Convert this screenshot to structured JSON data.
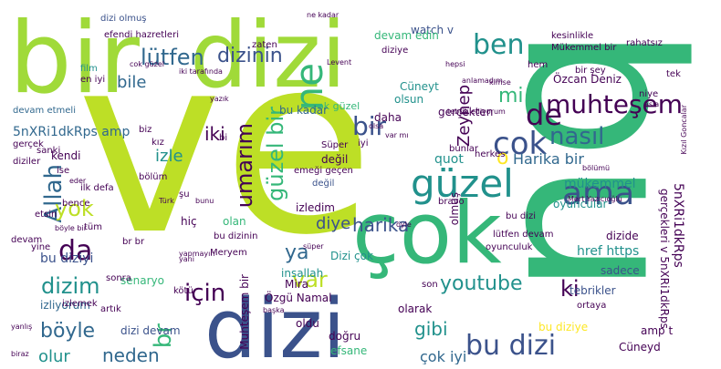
{
  "palette": {
    "darkPurple": "#440154",
    "indigo": "#3b528b",
    "blue": "#31688e",
    "teal": "#21918c",
    "green": "#35b779",
    "lime": "#a0da39",
    "yellowGreen": "#bddf26",
    "yellow": "#fde725"
  },
  "words": [
    "ve",
    "bu",
    "bir",
    "dizi",
    "çok",
    "dizi",
    "güzel",
    "ama",
    "muhteşem",
    "bir",
    "cok",
    "ne",
    "ben",
    "lütfen",
    "dizinin",
    "da",
    "de",
    "nasıl",
    "Allah",
    "umarım",
    "güzel bir",
    "harika",
    "Harika bir",
    "mi",
    "var",
    "ya",
    "için",
    "yok",
    "o",
    "dizim",
    "youtube",
    "gibi",
    "br",
    "ki",
    "böyle",
    "neden",
    "bu dizi",
    "çok iyi",
    "olur",
    "mükemmel",
    "iki",
    "izle",
    "bile",
    "Zeynep",
    "diye",
    "quot",
    "href https",
    "5nXRi1dkRps amp",
    "5nXRi1dkRps",
    "Cüneyt",
    "Özcan Deniz",
    "watch v",
    "devam edin",
    "olsun",
    "bu diziyi",
    "dizi devam",
    "Özgü Namal",
    "efsane",
    "dizide",
    "sadece",
    "tebrikler",
    "amp t",
    "izledim",
    "olmuş",
    "gerçekten",
    "hiç",
    "olan",
    "insallah",
    "senaryo",
    "devam",
    "kendi",
    "izliyorum",
    "oyuncular",
    "çok güzel",
    "daha",
    "değil",
    "bu kadar",
    "dizi olmuş",
    "efendi hazretleri",
    "film",
    "en iyi",
    "zaten",
    "değil",
    "Dizi çok",
    "Muhteşem bir",
    "oldu",
    "doğru",
    "Mira",
    "olarak",
    "bu diziye",
    "son",
    "Cüneyd",
    "gerçekleri v 5nXRi1dkRps",
    "devam etmeli",
    "kesinlikle",
    "rahatsız",
    "Mükemmel bir",
    "tek",
    "gerçek",
    "diziler",
    "bence",
    "iyi",
    "Süper",
    "emeği geçen",
    "bunlar",
    "herkes",
    "bravo",
    "Mert Yazıcıoğlu",
    "bi",
    "yine",
    "br br",
    "bu dizinin",
    "Meryem",
    "ilk defa",
    "tüm",
    "biz",
    "kız",
    "bölüm",
    "şu",
    "etsin",
    "böyle bir",
    "izlemek",
    "ne kadar",
    "diziye",
    "hem",
    "Levent",
    "bir şey",
    "niye",
    "asla",
    "bölümü",
    "Türk",
    "bunu",
    "lütfen devam",
    "oyunculuk",
    "bu dizi",
    "kötü",
    "artık",
    "yapmayın",
    "sanki",
    "cok güzel",
    "ise",
    "eder",
    "Kızıl Goncalar",
    "tebrik ediyorum",
    "sonra",
    "ortaya",
    "yanlış",
    "yazık",
    "iki tarafında",
    "başka",
    "süper",
    "biraz",
    "anlamadım",
    "kimse",
    "hepsi",
    "öyle",
    "olsa",
    "var mı",
    "yani"
  ]
}
